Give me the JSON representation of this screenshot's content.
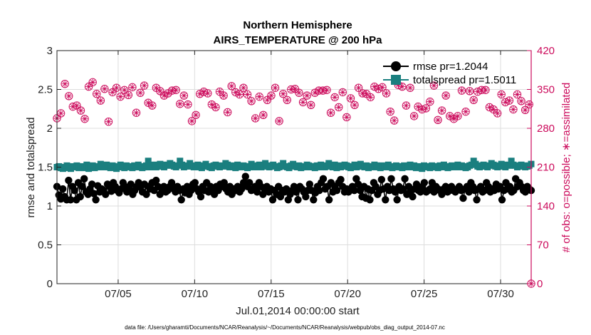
{
  "chart_data": {
    "type": "line",
    "title": "Northern Hemisphere",
    "subtitle": "AIRS_TEMPERATURE @ 200 hPa",
    "xlabel": "Jul.01,2014 00:00:00 start",
    "ylabel_left": "rmse and totalspread",
    "ylabel_right": "# of obs: o=possible; ∗=assimilated",
    "x_tick_labels": [
      "07/05",
      "07/10",
      "07/15",
      "07/20",
      "07/25",
      "07/30"
    ],
    "x_tick_days": [
      5,
      10,
      15,
      20,
      25,
      30
    ],
    "xlim": [
      1,
      32
    ],
    "ylim_left": [
      0,
      3
    ],
    "y_ticks_left": [
      "0",
      "0.5",
      "1",
      "1.5",
      "2",
      "2.5",
      "3"
    ],
    "ylim_right": [
      0,
      420
    ],
    "y_ticks_right": [
      "0",
      "70",
      "140",
      "210",
      "280",
      "350",
      "420"
    ],
    "grid": true,
    "legend_position": "top-right",
    "footnote": "data file: /Users/gharamti/Documents/NCAR/Reanalysis/~/Documents/NCAR/Reanalysis/webpub/obs_diag_output_2014-07.nc",
    "colors": {
      "rmse": "#000000",
      "totalspread": "#1a7f7f",
      "obs": "#cc0b5c",
      "grid": "#dddddd"
    },
    "series": [
      {
        "name": "rmse pr=1.2044",
        "axis": "left",
        "values": [
          1.25,
          1.14,
          1.09,
          1.22,
          1.12,
          1.08,
          1.33,
          1.08,
          1.25,
          1.2,
          1.08,
          1.3,
          1.12,
          1.25,
          1.35,
          1.18,
          1.15,
          1.22,
          1.28,
          1.16,
          1.08,
          1.26,
          1.18,
          1.22,
          1.2,
          1.15,
          1.28,
          1.25,
          1.19,
          1.3,
          1.25,
          1.2,
          1.17,
          1.22,
          1.3,
          1.25,
          1.18,
          1.22,
          1.28,
          1.15,
          1.2,
          1.25,
          1.3,
          1.24,
          1.18,
          1.28,
          1.15,
          1.25,
          1.22,
          1.3,
          1.2,
          1.33,
          1.25,
          1.15,
          1.22,
          1.25,
          1.18,
          1.2,
          1.25,
          1.3,
          1.22,
          1.18,
          1.25,
          1.2,
          1.08,
          1.22,
          1.17,
          1.25,
          1.15,
          1.2,
          1.28,
          1.3,
          1.22,
          1.18,
          1.12,
          1.25,
          1.2,
          1.3,
          1.18,
          1.25,
          1.22,
          1.15,
          1.25,
          1.2,
          1.28,
          1.25,
          1.3,
          1.22,
          1.18,
          1.25,
          1.15,
          1.22,
          1.2,
          1.25,
          1.18,
          1.22,
          1.3,
          1.38,
          1.25,
          1.3,
          1.2,
          1.22,
          1.25,
          1.18,
          1.3,
          1.25,
          1.15,
          1.2,
          1.25,
          1.18,
          1.22,
          1.08,
          1.2,
          1.15,
          1.25,
          1.12,
          1.2,
          1.18,
          1.22,
          1.08,
          1.15,
          1.2,
          1.25,
          1.18,
          1.08,
          1.25,
          1.22,
          1.18,
          1.12,
          1.2,
          1.28,
          1.2,
          1.08,
          1.17,
          1.25,
          1.2,
          1.3,
          1.35,
          1.22,
          1.25,
          1.08,
          1.3,
          1.18,
          1.25,
          1.2,
          1.3,
          1.34,
          1.25,
          1.18,
          1.22,
          1.18,
          1.22,
          1.25,
          1.2,
          1.35,
          1.28,
          1.2,
          1.12,
          1.25,
          1.1,
          1.22,
          1.08,
          1.2,
          1.3,
          1.25,
          1.15,
          1.2,
          1.34,
          1.22,
          1.08,
          1.25,
          1.2,
          1.35,
          1.22,
          1.18,
          1.08,
          1.25,
          1.2,
          1.22,
          1.35,
          1.15,
          1.25,
          1.2,
          1.12,
          1.22,
          1.28,
          1.2,
          1.18,
          1.25,
          1.3,
          1.18,
          1.2,
          1.22,
          1.3,
          1.18,
          1.25,
          1.22,
          1.2,
          1.15,
          1.22,
          1.25,
          1.18,
          1.2,
          1.25,
          1.2,
          1.18,
          1.22,
          1.25,
          1.2,
          1.1,
          1.22,
          1.25,
          1.18,
          1.3,
          1.25,
          1.2,
          1.08,
          1.22,
          1.25,
          1.18,
          1.2,
          1.3,
          1.25,
          1.18,
          1.22,
          1.2,
          1.28,
          1.22,
          1.25,
          1.08,
          1.2,
          1.3,
          1.22,
          1.25,
          1.18,
          1.2,
          1.35,
          1.25,
          1.3,
          1.25,
          1.2,
          1.18,
          1.25,
          1.22,
          1.2
        ]
      },
      {
        "name": "totalspread pr=1.5011",
        "axis": "left",
        "values": [
          1.5,
          1.51,
          1.49,
          1.48,
          1.5,
          1.52,
          1.49,
          1.48,
          1.51,
          1.5,
          1.52,
          1.49,
          1.51,
          1.5,
          1.49,
          1.53,
          1.48,
          1.5,
          1.52,
          1.49,
          1.51,
          1.5,
          1.54,
          1.52,
          1.5,
          1.53,
          1.51,
          1.49,
          1.52,
          1.5,
          1.48,
          1.51,
          1.53,
          1.5,
          1.49,
          1.52,
          1.51,
          1.5,
          1.49,
          1.52,
          1.5,
          1.53,
          1.51,
          1.49,
          1.5,
          1.52,
          1.58,
          1.5,
          1.51,
          1.53,
          1.5,
          1.52,
          1.54,
          1.51,
          1.5,
          1.53,
          1.52,
          1.55,
          1.53,
          1.51,
          1.5,
          1.52,
          1.58,
          1.53,
          1.5,
          1.52,
          1.51,
          1.55,
          1.52,
          1.5,
          1.51,
          1.53,
          1.5,
          1.49,
          1.52,
          1.54,
          1.51,
          1.5,
          1.49,
          1.52,
          1.53,
          1.51,
          1.5,
          1.52,
          1.51,
          1.55,
          1.53,
          1.5,
          1.52,
          1.51,
          1.49,
          1.53,
          1.51,
          1.5,
          1.52,
          1.51,
          1.49,
          1.5,
          1.54,
          1.52,
          1.5,
          1.51,
          1.53,
          1.5,
          1.52,
          1.55,
          1.51,
          1.5,
          1.52,
          1.53,
          1.51,
          1.49,
          1.5,
          1.52,
          1.55,
          1.51,
          1.5,
          1.49,
          1.52,
          1.54,
          1.51,
          1.5,
          1.52,
          1.49,
          1.51,
          1.5,
          1.53,
          1.52,
          1.5,
          1.51,
          1.49,
          1.52,
          1.5,
          1.53,
          1.51,
          1.5,
          1.52,
          1.55,
          1.51,
          1.5,
          1.53,
          1.49,
          1.52,
          1.5,
          1.51,
          1.53,
          1.52,
          1.5,
          1.49,
          1.51,
          1.53,
          1.5,
          1.52,
          1.54,
          1.51,
          1.5,
          1.52,
          1.49,
          1.51,
          1.5,
          1.53,
          1.52,
          1.5,
          1.49,
          1.52,
          1.51,
          1.5,
          1.53,
          1.51,
          1.49,
          1.5,
          1.52,
          1.51,
          1.5,
          1.49,
          1.52,
          1.5,
          1.51,
          1.53,
          1.5,
          1.52,
          1.49,
          1.51,
          1.5,
          1.48,
          1.52,
          1.51,
          1.5,
          1.49,
          1.52,
          1.5,
          1.51,
          1.49,
          1.52,
          1.5,
          1.53,
          1.51,
          1.49,
          1.5,
          1.52,
          1.51,
          1.5,
          1.53,
          1.5,
          1.52,
          1.51,
          1.49,
          1.5,
          1.52,
          1.53,
          1.58,
          1.54,
          1.51,
          1.5,
          1.52,
          1.53,
          1.51,
          1.5,
          1.52,
          1.55,
          1.53,
          1.51,
          1.5,
          1.52,
          1.54,
          1.51,
          1.5,
          1.53,
          1.52,
          1.58,
          1.53,
          1.52,
          1.5,
          1.51,
          1.53,
          1.52,
          1.5,
          1.51,
          1.52,
          1.54
        ]
      },
      {
        "name": "obs possible",
        "axis": "right",
        "marker": "circle",
        "values": [
          298,
          338,
          307,
          319,
          360,
          292,
          338,
          350,
          319,
          298,
          321,
          358,
          312,
          341,
          297,
          313,
          355,
          319,
          363,
          290,
          342,
          359,
          330,
          287,
          351,
          357,
          292,
          346,
          345,
          357,
          353,
          312,
          337,
          354,
          349,
          346,
          340,
          298,
          354,
          310,
          308,
          326,
          344,
          312,
          357,
          307,
          326,
          355,
          321,
          310,
          353,
          313,
          347,
          340,
          339,
          357,
          343,
          328,
          348,
          357,
          349,
          349,
          324,
          319,
          339,
          303,
          323,
          351,
          293,
          313,
          304,
          359,
          342,
          359,
          346,
          315,
          343,
          359,
          323,
          316,
          318,
          344,
          346,
          331,
          339,
          309,
          309,
          304,
          356,
          331,
          345,
          359,
          341,
          346,
          353,
          316,
          341,
          346,
          329,
          297,
          298,
          355,
          337,
          348,
          304,
          302,
          331,
          352,
          339,
          343,
          353,
          355,
          293,
          346,
          342,
          328,
          331,
          327,
          350,
          354,
          351,
          341,
          344,
          297,
          327,
          302,
          339,
          318,
          322,
          350,
          344,
          339,
          348,
          309,
          348,
          318,
          349,
          301,
          308,
          356,
          336,
          327,
          318,
          339,
          345,
          340,
          300,
          341,
          334,
          339,
          322,
          308,
          353,
          294,
          343,
          345,
          342,
          334,
          336,
          321,
          355,
          351,
          351,
          322,
          354,
          310,
          343,
          357,
          310,
          325,
          294,
          349,
          358,
          308,
          355,
          314,
          321,
          312,
          353,
          346,
          302,
          340,
          319,
          352,
          314,
          317,
          316,
          353,
          328,
          346,
          357,
          291,
          295,
          329,
          312,
          330,
          339,
          301,
          302,
          339,
          297,
          326,
          302,
          340,
          348,
          337,
          310,
          354,
          347,
          337,
          331,
          327,
          346,
          313,
          349,
          351,
          349,
          325,
          318,
          355,
          314,
          323,
          307,
          357,
          341,
          343,
          327,
          326,
          330,
          352,
          314,
          338,
          341,
          308,
          329,
          353,
          313,
          344,
          323,
          344
        ]
      },
      {
        "name": "obs assimilated",
        "axis": "right",
        "marker": "asterisk",
        "values": [
          298,
          338,
          307,
          319,
          360,
          292,
          338,
          350,
          319,
          298,
          321,
          358,
          312,
          341,
          297,
          313,
          355,
          319,
          363,
          290,
          342,
          359,
          330,
          287,
          351,
          357,
          292,
          346,
          345,
          357,
          353,
          312,
          337,
          354,
          349,
          346,
          340,
          298,
          354,
          310,
          308,
          326,
          344,
          312,
          357,
          307,
          326,
          355,
          321,
          310,
          353,
          313,
          347,
          340,
          339,
          357,
          343,
          328,
          348,
          357,
          349,
          349,
          324,
          319,
          339,
          303,
          323,
          351,
          293,
          313,
          304,
          359,
          342,
          359,
          346,
          315,
          343,
          359,
          323,
          316,
          318,
          344,
          346,
          331,
          339,
          309,
          309,
          304,
          356,
          331,
          345,
          359,
          341,
          346,
          353,
          316,
          341,
          346,
          329,
          297,
          298,
          355,
          337,
          348,
          304,
          302,
          331,
          352,
          339,
          343,
          353,
          355,
          293,
          346,
          342,
          328,
          331,
          327,
          350,
          354,
          351,
          341,
          344,
          297,
          327,
          302,
          339,
          318,
          322,
          350,
          344,
          339,
          348,
          309,
          348,
          318,
          349,
          301,
          308,
          356,
          336,
          327,
          318,
          339,
          345,
          340,
          300,
          341,
          334,
          339,
          322,
          308,
          353,
          294,
          343,
          345,
          342,
          334,
          336,
          321,
          355,
          351,
          351,
          322,
          354,
          310,
          343,
          357,
          310,
          325,
          294,
          349,
          358,
          308,
          355,
          314,
          321,
          312,
          353,
          346,
          302,
          340,
          319,
          352,
          314,
          317,
          316,
          353,
          328,
          346,
          357,
          291,
          295,
          329,
          312,
          330,
          339,
          301,
          302,
          339,
          297,
          326,
          302,
          340,
          348,
          337,
          310,
          354,
          347,
          337,
          331,
          327,
          346,
          313,
          349,
          351,
          349,
          325,
          318,
          355,
          314,
          323,
          307,
          357,
          341,
          343,
          327,
          326,
          330,
          352,
          314,
          338,
          341,
          308,
          329,
          353,
          313,
          344,
          323,
          344
        ]
      }
    ]
  }
}
